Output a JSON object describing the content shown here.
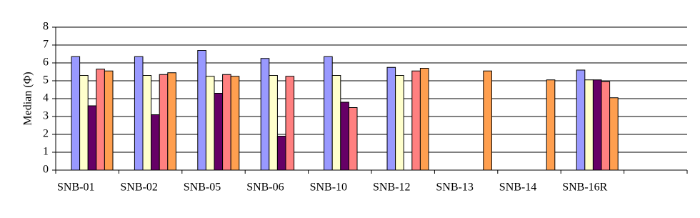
{
  "chart_data": {
    "type": "bar",
    "y_label": "Median (Φ)",
    "categories": [
      "SNB-01",
      "SNB-02",
      "SNB-05",
      "SNB-06",
      "SNB-10",
      "SNB-12",
      "SNB-13",
      "SNB-14",
      "SNB-16R",
      null
    ],
    "series": [
      {
        "color": "#9999ff",
        "values": [
          6.35,
          6.35,
          6.7,
          6.25,
          6.35,
          5.75,
          null,
          null,
          5.6,
          null
        ]
      },
      {
        "color": "#ffffcc",
        "values": [
          5.3,
          5.3,
          5.25,
          5.3,
          5.3,
          5.3,
          null,
          null,
          5.05,
          null
        ]
      },
      {
        "color": "#660066",
        "values": [
          3.6,
          3.1,
          4.3,
          1.9,
          3.8,
          null,
          null,
          null,
          5.05,
          null
        ]
      },
      {
        "color": "#ff8080",
        "values": [
          5.65,
          5.35,
          5.35,
          5.25,
          3.5,
          5.55,
          null,
          null,
          4.95,
          null
        ]
      },
      {
        "color": "#ff9f4f",
        "values": [
          5.55,
          5.45,
          5.25,
          null,
          null,
          5.7,
          5.55,
          5.05,
          4.05,
          null
        ]
      }
    ],
    "ylim": [
      0,
      8
    ],
    "yticks": [
      0,
      1,
      2,
      3,
      4,
      5,
      6,
      7,
      8
    ],
    "grid": true
  }
}
